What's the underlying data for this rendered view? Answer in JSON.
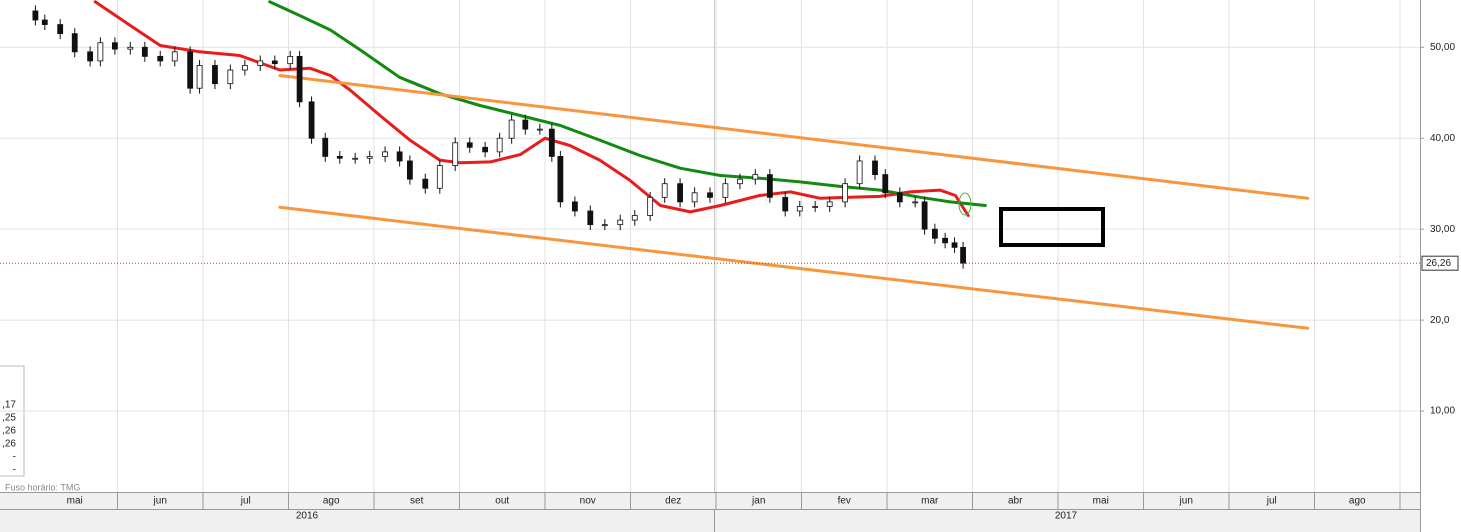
{
  "chart_data": {
    "type": "candlestick",
    "xlim": [
      -0.374,
      16.234
    ],
    "ylim": [
      1.1,
      55.2
    ],
    "xticks": [
      {
        "value": 0.5,
        "label": "mai"
      },
      {
        "value": 1.5,
        "label": "jun"
      },
      {
        "value": 2.5,
        "label": "jul"
      },
      {
        "value": 3.5,
        "label": "ago"
      },
      {
        "value": 4.5,
        "label": "set"
      },
      {
        "value": 5.5,
        "label": "out"
      },
      {
        "value": 6.5,
        "label": "nov"
      },
      {
        "value": 7.5,
        "label": "dez"
      },
      {
        "value": 8.5,
        "label": "jan"
      },
      {
        "value": 9.5,
        "label": "fev"
      },
      {
        "value": 10.5,
        "label": "mar"
      },
      {
        "value": 11.5,
        "label": "abr"
      },
      {
        "value": 12.5,
        "label": "mai"
      },
      {
        "value": 13.5,
        "label": "jun"
      },
      {
        "value": 14.5,
        "label": "jul"
      },
      {
        "value": 15.5,
        "label": "ago"
      }
    ],
    "years": [
      "2016",
      "2017"
    ],
    "yticks": [
      {
        "value": 50,
        "label": "50,00"
      },
      {
        "value": 40,
        "label": "40,00"
      },
      {
        "value": 30,
        "label": "30,00"
      },
      {
        "value": 20,
        "label": "20,0"
      },
      {
        "value": 10,
        "label": "10,00"
      }
    ],
    "grid": true,
    "x": [
      0.04,
      0.15,
      0.33,
      0.5,
      0.68,
      0.8,
      0.97,
      1.15,
      1.32,
      1.5,
      1.67,
      1.85,
      1.96,
      2.14,
      2.32,
      2.49,
      2.67,
      2.84,
      3.02,
      3.13,
      3.27,
      3.43,
      3.6,
      3.78,
      3.95,
      4.13,
      4.3,
      4.42,
      4.6,
      4.77,
      4.95,
      5.12,
      5.3,
      5.47,
      5.61,
      5.77,
      5.94,
      6.08,
      6.18,
      6.35,
      6.53,
      6.7,
      6.88,
      7.05,
      7.23,
      7.4,
      7.58,
      7.75,
      7.93,
      8.11,
      8.28,
      8.46,
      8.63,
      8.81,
      8.98,
      9.16,
      9.33,
      9.51,
      9.68,
      9.86,
      9.98,
      10.15,
      10.33,
      10.44,
      10.56,
      10.68,
      10.79,
      10.89
    ],
    "open": [
      54,
      53,
      52.5,
      51.5,
      49.5,
      48.5,
      50.5,
      49.8,
      50,
      49,
      48.5,
      49.5,
      45.5,
      48,
      46,
      47.5,
      48,
      48.5,
      48.2,
      49,
      44,
      40,
      38,
      37.8,
      37.8,
      38,
      38.5,
      37.5,
      35.5,
      34.5,
      37,
      39.5,
      39,
      38.5,
      40,
      42,
      41,
      41,
      38,
      33,
      32,
      30.5,
      30.5,
      31,
      31.5,
      33.5,
      35,
      33,
      34,
      33.5,
      35,
      35.5,
      36,
      33.5,
      32,
      32.5,
      32.5,
      33,
      35,
      37.5,
      36,
      34,
      33,
      33,
      30,
      29,
      28.5,
      28
    ],
    "high": [
      54.6,
      53.6,
      53.1,
      52.1,
      50.1,
      51.1,
      51.1,
      50.6,
      50.6,
      49.6,
      50.1,
      50.1,
      48.6,
      48.6,
      48.1,
      48.6,
      49.1,
      49.1,
      49.6,
      49.6,
      44.6,
      40.6,
      38.6,
      38.4,
      38.6,
      39.1,
      39.1,
      38.1,
      36.1,
      37.6,
      40.1,
      40.1,
      39.6,
      40.6,
      42.6,
      42.6,
      41.6,
      41.6,
      38.6,
      33.6,
      32.6,
      31.1,
      31.6,
      32.1,
      34.1,
      35.6,
      35.6,
      34.6,
      34.6,
      35.6,
      36.1,
      36.6,
      36.6,
      34.1,
      33.1,
      33.1,
      33.6,
      35.6,
      38.1,
      38.1,
      36.6,
      34.6,
      33.6,
      33.6,
      30.6,
      29.6,
      29.1,
      28.6
    ],
    "low": [
      52.4,
      51.9,
      50.9,
      48.9,
      47.9,
      47.9,
      49.2,
      49.2,
      48.4,
      47.9,
      47.9,
      44.9,
      44.9,
      45.4,
      45.4,
      46.9,
      47.4,
      47.6,
      47.6,
      43.4,
      39.4,
      37.4,
      37.2,
      37.2,
      37.2,
      37.4,
      36.9,
      34.9,
      33.9,
      33.9,
      36.4,
      38.4,
      37.9,
      37.9,
      39.4,
      40.4,
      40.4,
      37.4,
      32.4,
      31.4,
      29.9,
      29.9,
      29.9,
      30.4,
      30.9,
      32.9,
      32.4,
      32.4,
      32.9,
      32.9,
      34.4,
      34.9,
      32.9,
      31.4,
      31.4,
      31.9,
      31.9,
      32.4,
      34.4,
      35.4,
      33.4,
      32.4,
      32.4,
      29.4,
      28.4,
      27.9,
      27.4,
      25.66
    ],
    "close": [
      53,
      52.5,
      51.5,
      49.5,
      48.5,
      50.5,
      49.8,
      50,
      49,
      48.5,
      49.5,
      45.5,
      48,
      46,
      47.5,
      48,
      48.5,
      48.2,
      49,
      44,
      40,
      38,
      37.8,
      37.8,
      38,
      38.5,
      37.5,
      35.5,
      34.5,
      37,
      39.5,
      39,
      38.5,
      40,
      42,
      41,
      41,
      38,
      33,
      32,
      30.5,
      30.5,
      31,
      31.5,
      33.5,
      35,
      33,
      34,
      33.5,
      35,
      35.5,
      36,
      33.5,
      32,
      32.5,
      32.5,
      33,
      35,
      37.5,
      36,
      34,
      33,
      33,
      30,
      29,
      28.5,
      28,
      26.26
    ],
    "overlays": [
      {
        "color": "#e81c1c",
        "x": [
          0.74,
          1.15,
          1.5,
          1.96,
          2.43,
          2.9,
          3.25,
          3.49,
          3.72,
          4.07,
          4.42,
          4.77,
          5.01,
          5.36,
          5.71,
          6,
          6.29,
          6.64,
          6.99,
          7.35,
          7.7,
          8.05,
          8.51,
          8.87,
          9.22,
          9.57,
          9.92,
          10.27,
          10.62,
          10.8,
          10.95
        ],
        "values": [
          55,
          52.4,
          50.2,
          49.5,
          49.1,
          47.5,
          47.7,
          46.9,
          45.3,
          42.5,
          39.8,
          37.6,
          37.3,
          37.4,
          38.2,
          40,
          39.2,
          37.6,
          35.4,
          32.6,
          31.9,
          32.6,
          33.7,
          34.1,
          33.4,
          33.5,
          33.6,
          34.1,
          34.3,
          33.7,
          31.5
        ]
      },
      {
        "color": "#128a12",
        "x": [
          2.78,
          3.13,
          3.49,
          3.84,
          4.3,
          4.77,
          5.24,
          5.71,
          6.18,
          6.64,
          7.11,
          7.58,
          8.05,
          8.51,
          8.98,
          9.45,
          9.92,
          10.39,
          10.74,
          11.15
        ],
        "values": [
          55,
          53.5,
          51.9,
          49.7,
          46.7,
          44.9,
          43.6,
          42.5,
          41.4,
          39.8,
          38.1,
          36.7,
          35.9,
          35.6,
          35.2,
          34.7,
          34.3,
          33.5,
          33,
          32.6
        ]
      },
      {
        "color": "#f7963c",
        "x": [
          2.9,
          14.92
        ],
        "values": [
          46.9,
          33.4
        ]
      },
      {
        "color": "#f7963c",
        "x": [
          2.9,
          14.92
        ],
        "values": [
          32.4,
          19.1
        ]
      }
    ],
    "last_price": {
      "value": 26.26,
      "label": "26,26"
    },
    "legend_box": [
      ",17",
      ",25",
      ",26",
      ",26",
      "-",
      "-"
    ],
    "timezone": "Fuso horário: TMG"
  }
}
